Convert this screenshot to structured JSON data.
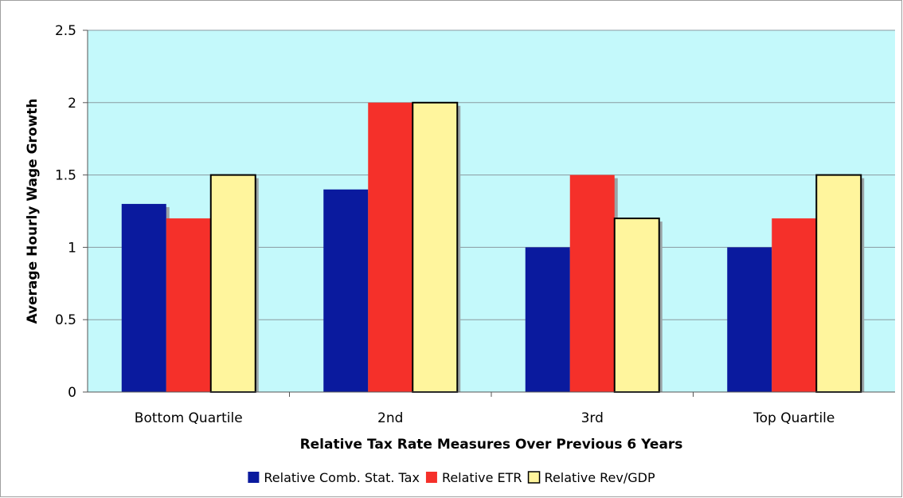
{
  "chart_data": {
    "type": "bar",
    "title": "",
    "xlabel": "Relative Tax Rate Measures Over Previous 6 Years",
    "ylabel": "Average Hourly Wage Growth",
    "categories": [
      "Bottom Quartile",
      "2nd",
      "3rd",
      "Top Quartile"
    ],
    "series": [
      {
        "name": "Relative Comb. Stat. Tax",
        "values": [
          1.3,
          1.4,
          1.0,
          1.0
        ],
        "color": "#0a1a9e"
      },
      {
        "name": "Relative ETR",
        "values": [
          1.2,
          2.0,
          1.5,
          1.2
        ],
        "color": "#f5302a"
      },
      {
        "name": "Relative Rev/GDP",
        "values": [
          1.5,
          2.0,
          1.2,
          1.5
        ],
        "color": "#fff59d"
      }
    ],
    "ylim": [
      0,
      2.5
    ],
    "yticks": [
      "0",
      "0.5",
      "1",
      "1.5",
      "2",
      "2.5"
    ],
    "grid": true,
    "plot_background": "#c4f9fb",
    "legend_position": "bottom"
  }
}
